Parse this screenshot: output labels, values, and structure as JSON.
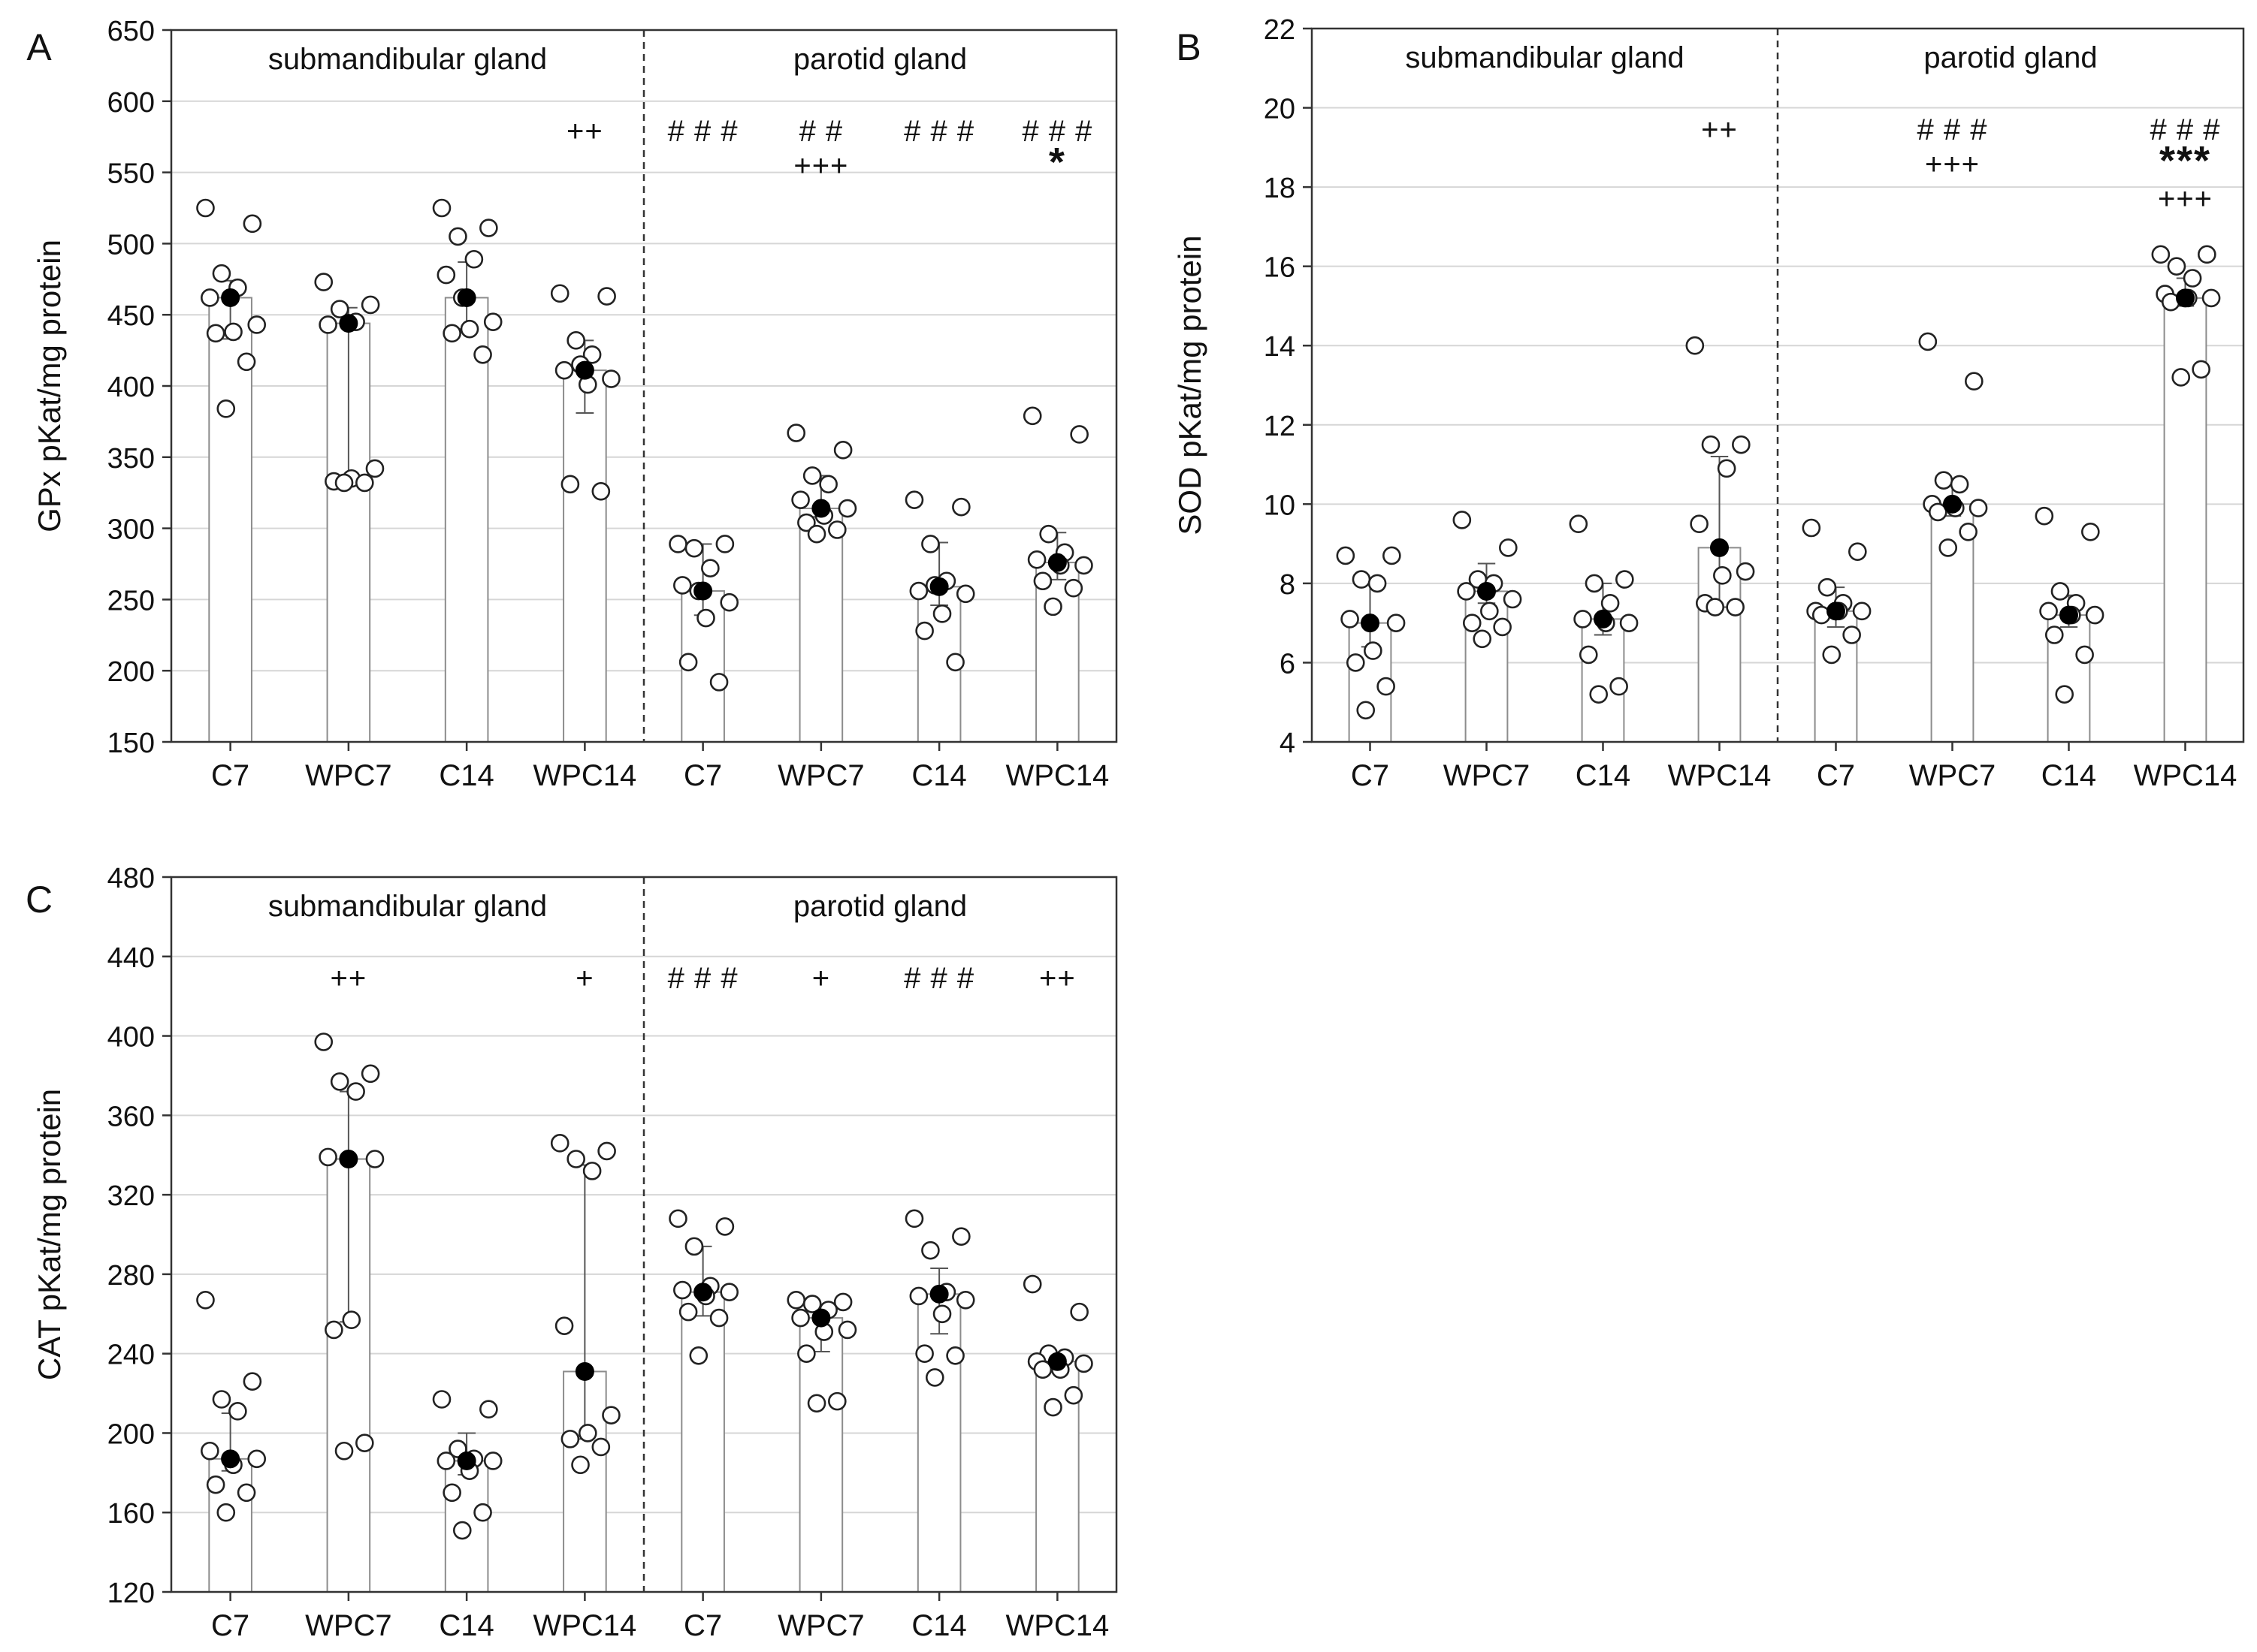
{
  "chart_data": [
    {
      "panel": "A",
      "type": "bar",
      "ylabel": "GPx pKat/mg protein",
      "ylim": [
        150,
        650
      ],
      "yticks": [
        150,
        200,
        250,
        300,
        350,
        400,
        450,
        500,
        550,
        600,
        650
      ],
      "groups": [
        {
          "name": "submandibular gland",
          "categories": [
            "C7",
            "WPC7",
            "C14",
            "WPC14"
          ]
        },
        {
          "name": "parotid gland",
          "categories": [
            "C7",
            "WPC7",
            "C14",
            "WPC14"
          ]
        }
      ],
      "categories": [
        "C7",
        "WPC7",
        "C14",
        "WPC14",
        "C7",
        "WPC7",
        "C14",
        "WPC14"
      ],
      "values": [
        462,
        444,
        462,
        411,
        256,
        314,
        259,
        276
      ],
      "err_low": [
        433,
        330,
        440,
        381,
        239,
        308,
        246,
        264
      ],
      "err_high": [
        474,
        455,
        487,
        432,
        289,
        337,
        290,
        297
      ],
      "points": [
        [
          525,
          514,
          479,
          469,
          462,
          443,
          438,
          437,
          417,
          384
        ],
        [
          473,
          457,
          454,
          445,
          443,
          342,
          335,
          333,
          332,
          332
        ],
        [
          525,
          511,
          505,
          489,
          478,
          445,
          440,
          437,
          422,
          462
        ],
        [
          465,
          463,
          432,
          422,
          411,
          405,
          401,
          331,
          326,
          415
        ],
        [
          289,
          289,
          286,
          272,
          260,
          248,
          237,
          206,
          192,
          256
        ],
        [
          367,
          355,
          337,
          331,
          320,
          314,
          309,
          304,
          299,
          296
        ],
        [
          320,
          315,
          289,
          263,
          256,
          254,
          240,
          228,
          206,
          260
        ],
        [
          379,
          366,
          296,
          283,
          278,
          274,
          274,
          263,
          258,
          245
        ]
      ],
      "annotations": [
        {
          "index": 3,
          "lines": [
            "++"
          ]
        },
        {
          "index": 4,
          "lines": [
            "# # #"
          ]
        },
        {
          "index": 5,
          "lines": [
            "# #",
            "+++"
          ]
        },
        {
          "index": 6,
          "lines": [
            "# # #"
          ]
        },
        {
          "index": 7,
          "lines": [
            "# # #",
            "*"
          ]
        }
      ]
    },
    {
      "panel": "B",
      "type": "bar",
      "ylabel": "SOD pKat/mg protein",
      "ylim": [
        4,
        22
      ],
      "yticks": [
        4,
        6,
        8,
        10,
        12,
        14,
        16,
        18,
        20,
        22
      ],
      "groups": [
        {
          "name": "submandibular gland",
          "categories": [
            "C7",
            "WPC7",
            "C14",
            "WPC14"
          ]
        },
        {
          "name": "parotid gland",
          "categories": [
            "C7",
            "WPC7",
            "C14",
            "WPC14"
          ]
        }
      ],
      "categories": [
        "C7",
        "WPC7",
        "C14",
        "WPC14",
        "C7",
        "WPC7",
        "C14",
        "WPC14"
      ],
      "values": [
        7.0,
        7.8,
        7.1,
        8.9,
        7.3,
        10.0,
        7.2,
        15.2
      ],
      "err_low": [
        6.4,
        7.5,
        6.7,
        7.4,
        6.9,
        9.7,
        6.9,
        15.0
      ],
      "err_high": [
        8.0,
        8.5,
        8.0,
        11.2,
        7.9,
        10.6,
        7.7,
        15.7
      ],
      "points": [
        [
          8.7,
          8.7,
          8.1,
          8.0,
          7.1,
          7.0,
          6.3,
          6.0,
          5.4,
          4.8
        ],
        [
          9.6,
          8.9,
          8.1,
          8.0,
          7.8,
          7.6,
          7.3,
          7.0,
          6.9,
          6.6
        ],
        [
          9.5,
          8.1,
          8.0,
          7.5,
          7.1,
          7.0,
          7.0,
          6.2,
          5.4,
          5.2
        ],
        [
          14.0,
          11.5,
          11.5,
          10.9,
          9.5,
          8.3,
          8.2,
          7.5,
          7.4,
          7.4
        ],
        [
          9.4,
          8.8,
          7.9,
          7.5,
          7.3,
          7.3,
          7.3,
          7.2,
          6.7,
          6.2
        ],
        [
          14.1,
          13.1,
          10.6,
          10.5,
          10.0,
          9.9,
          9.9,
          9.8,
          9.3,
          8.9
        ],
        [
          9.7,
          9.3,
          7.8,
          7.5,
          7.3,
          7.2,
          7.2,
          6.7,
          6.2,
          5.2
        ],
        [
          16.3,
          16.3,
          16.0,
          15.7,
          15.3,
          15.2,
          15.2,
          15.1,
          13.4,
          13.2
        ]
      ],
      "annotations": [
        {
          "index": 3,
          "lines": [
            "++"
          ]
        },
        {
          "index": 5,
          "lines": [
            "# # #",
            "+++"
          ]
        },
        {
          "index": 7,
          "lines": [
            "# # #",
            "***",
            "+++"
          ]
        }
      ]
    },
    {
      "panel": "C",
      "type": "bar",
      "ylabel": "CAT pKat/mg protein",
      "ylim": [
        120,
        480
      ],
      "yticks": [
        120,
        160,
        200,
        240,
        280,
        320,
        360,
        400,
        440,
        480
      ],
      "groups": [
        {
          "name": "submandibular gland",
          "categories": [
            "C7",
            "WPC7",
            "C14",
            "WPC14"
          ]
        },
        {
          "name": "parotid gland",
          "categories": [
            "C7",
            "WPC7",
            "C14",
            "WPC14"
          ]
        }
      ],
      "categories": [
        "C7",
        "WPC7",
        "C14",
        "WPC14",
        "C7",
        "WPC7",
        "C14",
        "WPC14"
      ],
      "values": [
        187,
        338,
        186,
        231,
        271,
        258,
        270,
        236
      ],
      "err_low": [
        181,
        256,
        179,
        197,
        259,
        241,
        250,
        231
      ],
      "err_high": [
        210,
        372,
        200,
        335,
        294,
        264,
        283,
        240
      ],
      "points": [
        [
          267,
          226,
          217,
          211,
          191,
          187,
          184,
          174,
          170,
          160
        ],
        [
          397,
          381,
          377,
          372,
          339,
          338,
          257,
          252,
          195,
          191
        ],
        [
          217,
          212,
          192,
          187,
          186,
          186,
          181,
          170,
          160,
          151
        ],
        [
          346,
          342,
          338,
          332,
          254,
          209,
          200,
          197,
          193,
          184
        ],
        [
          308,
          304,
          294,
          274,
          272,
          271,
          269,
          261,
          258,
          239
        ],
        [
          267,
          266,
          265,
          262,
          258,
          252,
          251,
          240,
          216,
          215
        ],
        [
          308,
          299,
          292,
          271,
          269,
          267,
          260,
          240,
          239,
          228
        ],
        [
          275,
          261,
          240,
          238,
          236,
          235,
          232,
          232,
          219,
          213
        ]
      ],
      "annotations": [
        {
          "index": 1,
          "lines": [
            "++"
          ]
        },
        {
          "index": 3,
          "lines": [
            "+"
          ]
        },
        {
          "index": 4,
          "lines": [
            "# # #"
          ]
        },
        {
          "index": 5,
          "lines": [
            "+"
          ]
        },
        {
          "index": 6,
          "lines": [
            "# # #"
          ]
        },
        {
          "index": 7,
          "lines": [
            "++"
          ]
        }
      ]
    }
  ]
}
